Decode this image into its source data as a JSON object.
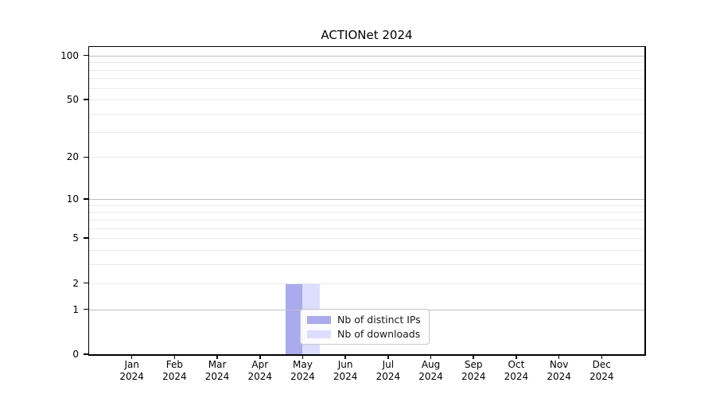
{
  "chart_data": {
    "type": "bar",
    "title": "ACTIONet 2024",
    "categories": [
      "Jan",
      "Feb",
      "Mar",
      "Apr",
      "May",
      "Jun",
      "Jul",
      "Aug",
      "Sep",
      "Oct",
      "Nov",
      "Dec"
    ],
    "year": "2024",
    "series": [
      {
        "name": "Nb of distinct IPs",
        "color": "#aaaaee",
        "values": [
          0,
          0,
          0,
          0,
          2,
          0,
          0,
          0,
          0,
          0,
          0,
          0
        ]
      },
      {
        "name": "Nb of downloads",
        "color": "#ddddff",
        "values": [
          0,
          0,
          0,
          0,
          2,
          0,
          0,
          0,
          0,
          0,
          0,
          0
        ]
      }
    ],
    "yscale": "log1p",
    "ylim": [
      0,
      114
    ],
    "ytick_values": [
      0,
      1,
      2,
      5,
      10,
      20,
      50,
      100
    ],
    "ytick_labels": [
      "0",
      "1",
      "2",
      "5",
      "10",
      "20",
      "50",
      "100"
    ],
    "major_grid_values": [
      1,
      10,
      100
    ],
    "minor_grid_values": [
      2,
      3,
      4,
      5,
      6,
      7,
      8,
      9,
      20,
      30,
      40,
      50,
      60,
      70,
      80,
      90
    ],
    "grid": true,
    "grid_over_bars": true,
    "legend_position": "lower center, inside plot",
    "colors": {
      "background": "#ffffff",
      "spine": "#000000",
      "major_grid": "#bdbdbd",
      "minor_grid": "#e9e9e9",
      "text": "#000000"
    }
  }
}
